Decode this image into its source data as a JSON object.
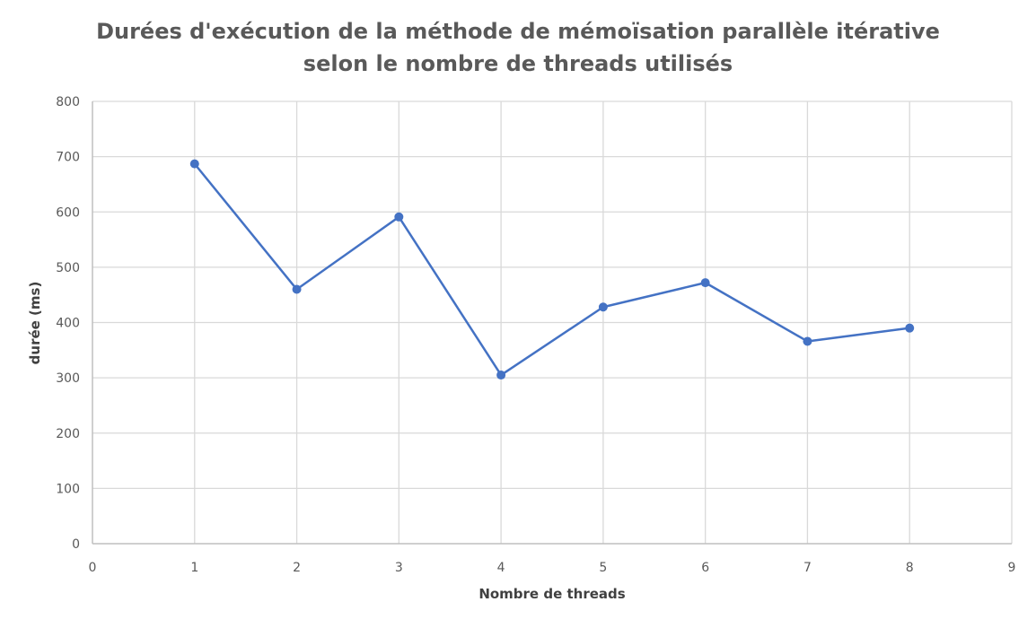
{
  "chart_data": {
    "type": "scatter",
    "mode": "lines+markers",
    "title_lines": [
      "Durées d'exécution de la méthode  de mémoïsation parallèle itérative",
      "selon le nombre de threads utilisés"
    ],
    "xlabel": "Nombre de threads",
    "ylabel": "durée (ms)",
    "xlim": [
      0,
      9
    ],
    "ylim": [
      0,
      800
    ],
    "xticks": [
      0,
      1,
      2,
      3,
      4,
      5,
      6,
      7,
      8,
      9
    ],
    "yticks": [
      0,
      100,
      200,
      300,
      400,
      500,
      600,
      700,
      800
    ],
    "grid": true,
    "legend": "none",
    "series": [
      {
        "x": [
          1,
          2,
          3,
          4,
          5,
          6,
          7,
          8
        ],
        "y": [
          687,
          460,
          591,
          305,
          428,
          472,
          366,
          390
        ],
        "color": "#4472c4"
      }
    ],
    "colors": {
      "grid": "#d9d9d9",
      "axis": "#bfbfbf",
      "line": "#4472c4",
      "text": "#595959"
    }
  }
}
